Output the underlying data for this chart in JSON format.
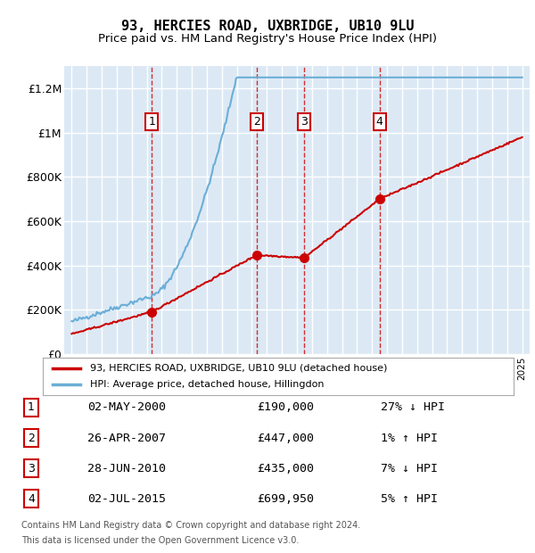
{
  "title": "93, HERCIES ROAD, UXBRIDGE, UB10 9LU",
  "subtitle": "Price paid vs. HM Land Registry's House Price Index (HPI)",
  "property_label": "93, HERCIES ROAD, UXBRIDGE, UB10 9LU (detached house)",
  "hpi_label": "HPI: Average price, detached house, Hillingdon",
  "footer_line1": "Contains HM Land Registry data © Crown copyright and database right 2024.",
  "footer_line2": "This data is licensed under the Open Government Licence v3.0.",
  "transactions": [
    {
      "num": 1,
      "date": "02-MAY-2000",
      "year": 2000.33,
      "price": 190000,
      "pct": "27% ↓ HPI"
    },
    {
      "num": 2,
      "date": "26-APR-2007",
      "year": 2007.32,
      "price": 447000,
      "pct": "1% ↑ HPI"
    },
    {
      "num": 3,
      "date": "28-JUN-2010",
      "year": 2010.49,
      "price": 435000,
      "pct": "7% ↓ HPI"
    },
    {
      "num": 4,
      "date": "02-JUL-2015",
      "year": 2015.5,
      "price": 699950,
      "pct": "5% ↑ HPI"
    }
  ],
  "ylim": [
    0,
    1300000
  ],
  "xlim_start": 1994.5,
  "xlim_end": 2025.5,
  "background_color": "#ffffff",
  "plot_bg_color": "#dce9f5",
  "grid_color": "#ffffff",
  "hpi_color": "#6baed6",
  "property_color": "#cc0000",
  "vline_color": "#cc0000",
  "transaction_box_color": "#cc0000",
  "yticks": [
    0,
    200000,
    400000,
    600000,
    800000,
    1000000,
    1200000
  ],
  "ytick_labels": [
    "£0",
    "£200K",
    "£400K",
    "£600K",
    "£800K",
    "£1M",
    "£1.2M"
  ]
}
